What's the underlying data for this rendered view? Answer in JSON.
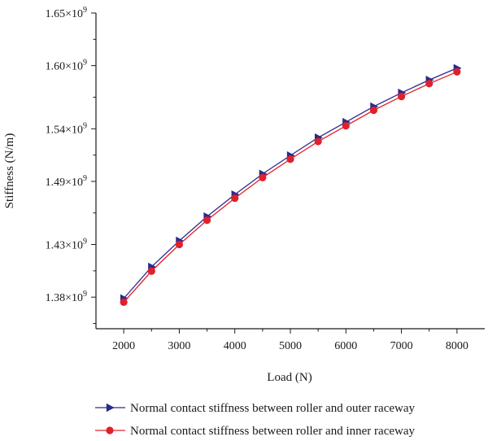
{
  "chart_data": {
    "type": "line",
    "xlabel": "Load (N)",
    "ylabel": "Stiffness (N/m)",
    "xlim": [
      1500,
      8500
    ],
    "ylim": [
      1350000000.0,
      1650000000.0
    ],
    "x_ticks": [
      2000,
      3000,
      4000,
      5000,
      6000,
      7000,
      8000
    ],
    "y_ticks": [
      1380000000.0,
      1430000000.0,
      1490000000.0,
      1540000000.0,
      1600000000.0,
      1650000000.0
    ],
    "y_tick_labels": [
      {
        "mantissa": "1.38×10",
        "exponent": "9"
      },
      {
        "mantissa": "1.43×10",
        "exponent": "9"
      },
      {
        "mantissa": "1.49×10",
        "exponent": "9"
      },
      {
        "mantissa": "1.54×10",
        "exponent": "9"
      },
      {
        "mantissa": "1.60×10",
        "exponent": "9"
      },
      {
        "mantissa": "1.65×10",
        "exponent": "9"
      }
    ],
    "legend_position": "bottom",
    "grid": false,
    "x": [
      2000,
      2500,
      3000,
      3500,
      4000,
      4500,
      5000,
      5500,
      6000,
      6500,
      7000,
      7500,
      8000
    ],
    "series": [
      {
        "name": "Normal contact stiffness between roller and outer raceway",
        "color": "#2b2a8c",
        "marker": "triangle-right",
        "values": [
          1378700000.0,
          1408800000.0,
          1433500000.0,
          1456600000.0,
          1477500000.0,
          1497100000.0,
          1514600000.0,
          1531600000.0,
          1546300000.0,
          1561100000.0,
          1574200000.0,
          1586400000.0,
          1597600000.0
        ]
      },
      {
        "name": "Normal contact stiffness between roller and inner raceway",
        "color": "#e0202a",
        "marker": "circle",
        "values": [
          1375200000.0,
          1404700000.0,
          1430000000.0,
          1453100000.0,
          1474000000.0,
          1493600000.0,
          1511100000.0,
          1527900000.0,
          1542800000.0,
          1557600000.0,
          1570700000.0,
          1582900000.0,
          1594100000.0
        ]
      }
    ]
  }
}
